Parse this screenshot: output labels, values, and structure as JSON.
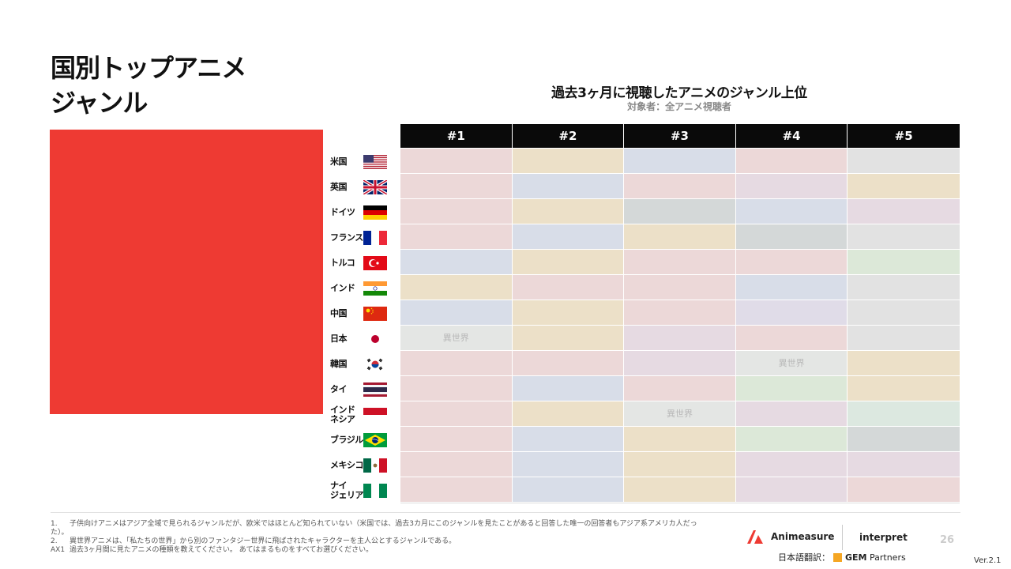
{
  "page": {
    "title_line1": "国別トップアニメ",
    "title_line2": "ジャンル",
    "accent_color": "#ee3a33"
  },
  "chart": {
    "title": "過去3ヶ月に視聴したアニメのジャンル上位",
    "subtitle": "対象者：全アニメ視聴者",
    "columns": [
      "#1",
      "#2",
      "#3",
      "#4",
      "#5"
    ]
  },
  "countries": [
    {
      "name": "米国",
      "flag": "us-flag-icon"
    },
    {
      "name": "英国",
      "flag": "uk-flag-icon"
    },
    {
      "name": "ドイツ",
      "flag": "germany-flag-icon"
    },
    {
      "name": "フランス",
      "flag": "france-flag-icon"
    },
    {
      "name": "トルコ",
      "flag": "turkey-flag-icon"
    },
    {
      "name": "インド",
      "flag": "india-flag-icon"
    },
    {
      "name": "中国",
      "flag": "china-flag-icon"
    },
    {
      "name": "日本",
      "flag": "japan-flag-icon"
    },
    {
      "name": "韓国",
      "flag": "korea-flag-icon"
    },
    {
      "name": "タイ",
      "flag": "thailand-flag-icon"
    },
    {
      "name": "インド\nネシア",
      "flag": "indonesia-flag-icon"
    },
    {
      "name": "ブラジル",
      "flag": "brazil-flag-icon"
    },
    {
      "name": "メキシコ",
      "flag": "mexico-flag-icon"
    },
    {
      "name": "ナイ\nジェリア",
      "flag": "nigeria-flag-icon"
    }
  ],
  "cells": [
    [
      {
        "c": "#ecd8d8",
        "t": ""
      },
      {
        "c": "#ece0c8",
        "t": ""
      },
      {
        "c": "#d8dde8",
        "t": ""
      },
      {
        "c": "#ecd8d8",
        "t": ""
      },
      {
        "c": "#e2e2e2",
        "t": ""
      }
    ],
    [
      {
        "c": "#ecd8d8",
        "t": ""
      },
      {
        "c": "#d8dde8",
        "t": ""
      },
      {
        "c": "#ecd8d8",
        "t": ""
      },
      {
        "c": "#e6dae2",
        "t": ""
      },
      {
        "c": "#ece0c8",
        "t": ""
      }
    ],
    [
      {
        "c": "#ecd8d8",
        "t": ""
      },
      {
        "c": "#ece0c8",
        "t": ""
      },
      {
        "c": "#d4d8d8",
        "t": ""
      },
      {
        "c": "#d8dde8",
        "t": ""
      },
      {
        "c": "#e6dae2",
        "t": ""
      }
    ],
    [
      {
        "c": "#ecd8d8",
        "t": ""
      },
      {
        "c": "#d8dde8",
        "t": ""
      },
      {
        "c": "#ece0c8",
        "t": ""
      },
      {
        "c": "#d4d8d8",
        "t": ""
      },
      {
        "c": "#e2e2e2",
        "t": ""
      }
    ],
    [
      {
        "c": "#d8dde8",
        "t": ""
      },
      {
        "c": "#ece0c8",
        "t": ""
      },
      {
        "c": "#ecd8d8",
        "t": ""
      },
      {
        "c": "#ecd8d8",
        "t": ""
      },
      {
        "c": "#dce8d8",
        "t": ""
      }
    ],
    [
      {
        "c": "#ece0c8",
        "t": ""
      },
      {
        "c": "#ecd8d8",
        "t": ""
      },
      {
        "c": "#ecd8d8",
        "t": ""
      },
      {
        "c": "#d8dde8",
        "t": ""
      },
      {
        "c": "#e2e2e2",
        "t": ""
      }
    ],
    [
      {
        "c": "#d8dde8",
        "t": ""
      },
      {
        "c": "#ece0c8",
        "t": ""
      },
      {
        "c": "#ecd8d8",
        "t": ""
      },
      {
        "c": "#e0dce8",
        "t": ""
      },
      {
        "c": "#e2e2e2",
        "t": ""
      }
    ],
    [
      {
        "c": "#e4e6e4",
        "t": "異世界"
      },
      {
        "c": "#ece0c8",
        "t": ""
      },
      {
        "c": "#e6dae2",
        "t": ""
      },
      {
        "c": "#ecd8d8",
        "t": ""
      },
      {
        "c": "#e2e2e2",
        "t": ""
      }
    ],
    [
      {
        "c": "#ecd8d8",
        "t": ""
      },
      {
        "c": "#ecd8d8",
        "t": ""
      },
      {
        "c": "#e6dae2",
        "t": ""
      },
      {
        "c": "#e4e6e4",
        "t": "異世界"
      },
      {
        "c": "#ece0c8",
        "t": ""
      }
    ],
    [
      {
        "c": "#ecd8d8",
        "t": ""
      },
      {
        "c": "#d8dde8",
        "t": ""
      },
      {
        "c": "#ecd8d8",
        "t": ""
      },
      {
        "c": "#dce8d8",
        "t": ""
      },
      {
        "c": "#ece0c8",
        "t": ""
      }
    ],
    [
      {
        "c": "#ecd8d8",
        "t": ""
      },
      {
        "c": "#ece0c8",
        "t": ""
      },
      {
        "c": "#e4e6e4",
        "t": "異世界"
      },
      {
        "c": "#e6dae2",
        "t": ""
      },
      {
        "c": "#dce8e0",
        "t": ""
      }
    ],
    [
      {
        "c": "#ecd8d8",
        "t": ""
      },
      {
        "c": "#d8dde8",
        "t": ""
      },
      {
        "c": "#ece0c8",
        "t": ""
      },
      {
        "c": "#dce8d8",
        "t": ""
      },
      {
        "c": "#d4d8d8",
        "t": ""
      }
    ],
    [
      {
        "c": "#ecd8d8",
        "t": ""
      },
      {
        "c": "#d8dde8",
        "t": ""
      },
      {
        "c": "#ece0c8",
        "t": ""
      },
      {
        "c": "#e6dae2",
        "t": ""
      },
      {
        "c": "#e6dae2",
        "t": ""
      }
    ],
    [
      {
        "c": "#ecd8d8",
        "t": ""
      },
      {
        "c": "#d8dde8",
        "t": ""
      },
      {
        "c": "#ece0c8",
        "t": ""
      },
      {
        "c": "#e6dae2",
        "t": ""
      },
      {
        "c": "#ecd8d8",
        "t": ""
      }
    ]
  ],
  "footnotes": {
    "fn1_num": "1.",
    "fn1_text": "子供向けアニメはアジア全域で見られるジャンルだが、欧米ではほとんど知られていない（米国では、過去3カ月にこのジャンルを見たことがあると回答した唯一の回答者もアジア系アメリカ人だった）。",
    "fn2_num": "2.",
    "fn2_text": "異世界アニメは、「私たちの世界」から別のファンタジー世界に飛ばされたキャラクターを主人公とするジャンルである。",
    "ax_num": "AX1",
    "ax_text": "過去3ヶ月間に見たアニメの種類を教えてください。 あてはまるものをすべてお選びください。"
  },
  "branding": {
    "animeasure": "Animeasure",
    "interpret": "interpret",
    "translation_label": "日本語翻訳：",
    "gem": "GEM",
    "partners": "Partners",
    "page_number": "26",
    "version": "Ver.2.1"
  }
}
